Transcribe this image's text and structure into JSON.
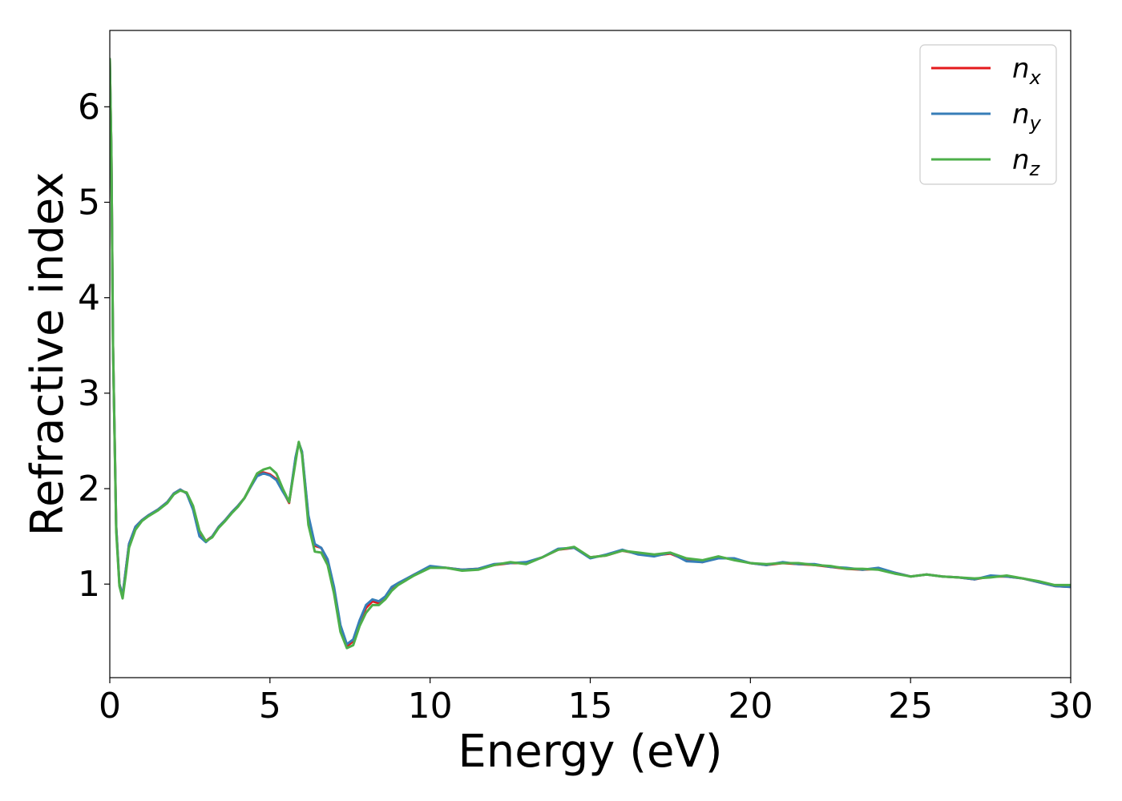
{
  "chart_data": {
    "type": "line",
    "xlabel": "Energy (eV)",
    "ylabel": "Refractive index",
    "xlim": [
      0,
      30
    ],
    "ylim": [
      0.02,
      6.8
    ],
    "xticks": [
      0,
      5,
      10,
      15,
      20,
      25,
      30
    ],
    "xtick_labels": [
      "0",
      "5",
      "10",
      "15",
      "20",
      "25",
      "30"
    ],
    "yticks": [
      1,
      2,
      3,
      4,
      5,
      6
    ],
    "ytick_labels": [
      "1",
      "2",
      "3",
      "4",
      "5",
      "6"
    ],
    "grid": false,
    "legend": "top-right",
    "x": [
      0.0,
      0.05,
      0.1,
      0.2,
      0.3,
      0.4,
      0.5,
      0.6,
      0.8,
      1.0,
      1.2,
      1.5,
      1.8,
      2.0,
      2.2,
      2.4,
      2.6,
      2.8,
      3.0,
      3.2,
      3.4,
      3.6,
      3.8,
      4.0,
      4.2,
      4.4,
      4.6,
      4.8,
      5.0,
      5.2,
      5.4,
      5.6,
      5.8,
      5.9,
      6.0,
      6.2,
      6.4,
      6.6,
      6.8,
      7.0,
      7.2,
      7.4,
      7.6,
      7.8,
      8.0,
      8.2,
      8.4,
      8.6,
      8.8,
      9.0,
      9.5,
      10.0,
      10.5,
      11.0,
      11.5,
      12.0,
      12.5,
      13.0,
      13.5,
      14.0,
      14.5,
      15.0,
      15.5,
      16.0,
      16.5,
      17.0,
      17.5,
      18.0,
      18.5,
      19.0,
      19.5,
      20.0,
      20.5,
      21.0,
      21.5,
      22.0,
      22.5,
      23.0,
      23.5,
      24.0,
      24.5,
      25.0,
      25.5,
      26.0,
      26.5,
      27.0,
      27.5,
      28.0,
      28.5,
      29.0,
      29.5,
      30.0
    ],
    "series": [
      {
        "name": "x",
        "color": "#e41a1c",
        "values": [
          6.5,
          5.5,
          3.5,
          1.6,
          1.0,
          0.88,
          1.15,
          1.42,
          1.6,
          1.67,
          1.72,
          1.78,
          1.86,
          1.95,
          1.99,
          1.95,
          1.8,
          1.52,
          1.45,
          1.5,
          1.6,
          1.67,
          1.75,
          1.82,
          1.9,
          2.02,
          2.14,
          2.17,
          2.15,
          2.1,
          1.98,
          1.85,
          2.32,
          2.48,
          2.38,
          1.7,
          1.4,
          1.38,
          1.25,
          0.95,
          0.55,
          0.35,
          0.4,
          0.6,
          0.75,
          0.82,
          0.8,
          0.85,
          0.95,
          1.0,
          1.1,
          1.18,
          1.17,
          1.15,
          1.16,
          1.2,
          1.22,
          1.22,
          1.28,
          1.36,
          1.38,
          1.28,
          1.3,
          1.35,
          1.32,
          1.3,
          1.32,
          1.25,
          1.23,
          1.28,
          1.26,
          1.22,
          1.2,
          1.22,
          1.21,
          1.2,
          1.18,
          1.16,
          1.15,
          1.16,
          1.12,
          1.08,
          1.1,
          1.08,
          1.07,
          1.05,
          1.08,
          1.08,
          1.06,
          1.02,
          0.98,
          0.97
        ]
      },
      {
        "name": "y",
        "color": "#377eb8",
        "values": [
          6.5,
          5.5,
          3.5,
          1.6,
          1.0,
          0.88,
          1.15,
          1.42,
          1.6,
          1.67,
          1.72,
          1.78,
          1.86,
          1.95,
          1.99,
          1.95,
          1.78,
          1.5,
          1.44,
          1.5,
          1.6,
          1.67,
          1.75,
          1.82,
          1.9,
          2.02,
          2.13,
          2.16,
          2.14,
          2.09,
          1.97,
          1.86,
          2.33,
          2.48,
          2.39,
          1.72,
          1.42,
          1.38,
          1.26,
          0.97,
          0.57,
          0.37,
          0.42,
          0.62,
          0.78,
          0.84,
          0.82,
          0.87,
          0.97,
          1.01,
          1.1,
          1.19,
          1.17,
          1.15,
          1.16,
          1.21,
          1.22,
          1.23,
          1.28,
          1.37,
          1.38,
          1.27,
          1.31,
          1.36,
          1.31,
          1.29,
          1.33,
          1.24,
          1.23,
          1.27,
          1.27,
          1.22,
          1.2,
          1.23,
          1.21,
          1.21,
          1.18,
          1.17,
          1.15,
          1.17,
          1.12,
          1.08,
          1.1,
          1.08,
          1.07,
          1.05,
          1.09,
          1.08,
          1.06,
          1.02,
          0.98,
          0.97
        ]
      },
      {
        "name": "z",
        "color": "#4daf4a",
        "values": [
          6.5,
          5.5,
          3.5,
          1.55,
          0.98,
          0.85,
          1.1,
          1.38,
          1.57,
          1.66,
          1.71,
          1.77,
          1.85,
          1.94,
          1.98,
          1.96,
          1.82,
          1.56,
          1.45,
          1.49,
          1.59,
          1.66,
          1.74,
          1.81,
          1.9,
          2.03,
          2.16,
          2.2,
          2.22,
          2.16,
          2.0,
          1.86,
          2.28,
          2.49,
          2.36,
          1.62,
          1.34,
          1.33,
          1.2,
          0.9,
          0.5,
          0.33,
          0.36,
          0.56,
          0.7,
          0.78,
          0.78,
          0.84,
          0.93,
          0.99,
          1.09,
          1.17,
          1.17,
          1.14,
          1.15,
          1.2,
          1.23,
          1.21,
          1.28,
          1.36,
          1.39,
          1.28,
          1.3,
          1.35,
          1.33,
          1.31,
          1.33,
          1.27,
          1.25,
          1.29,
          1.25,
          1.22,
          1.21,
          1.22,
          1.22,
          1.2,
          1.19,
          1.16,
          1.16,
          1.15,
          1.11,
          1.08,
          1.1,
          1.08,
          1.07,
          1.06,
          1.07,
          1.09,
          1.06,
          1.03,
          0.99,
          0.99
        ]
      }
    ]
  }
}
